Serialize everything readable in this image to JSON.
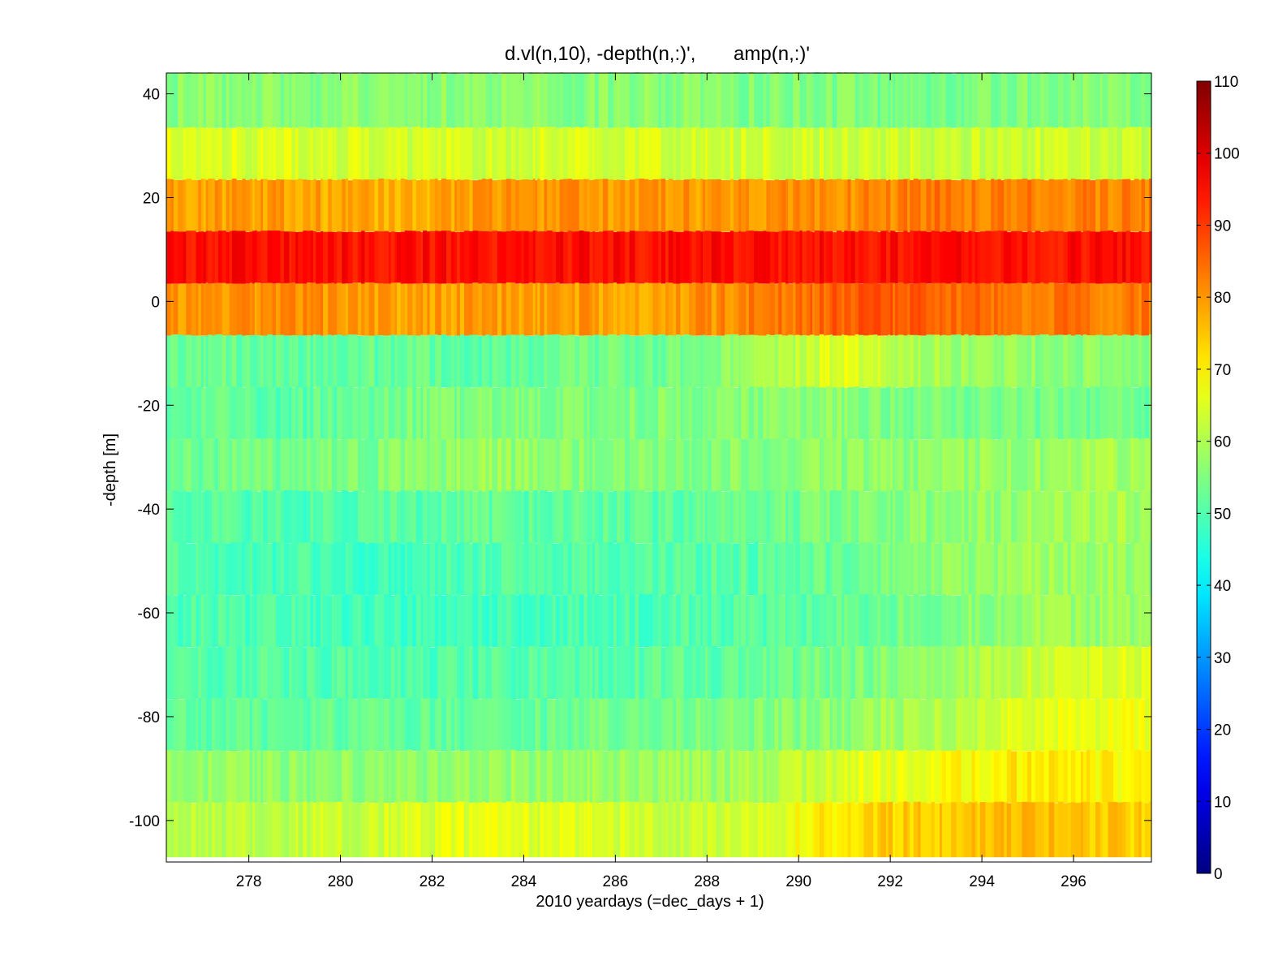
{
  "chart_data": {
    "type": "heatmap",
    "title": "d.vl(n,10), -depth(n,:)',       amp(n,:)'",
    "xlabel": "2010 yeardays (=dec_days + 1)",
    "ylabel": "-depth [m]",
    "xlim": [
      276.2,
      297.7
    ],
    "ylim": [
      -108,
      44
    ],
    "x_ticks": [
      278,
      280,
      282,
      284,
      286,
      288,
      290,
      292,
      294,
      296
    ],
    "y_ticks": [
      40,
      20,
      0,
      -20,
      -40,
      -60,
      -80,
      -100
    ],
    "colorbar": {
      "colormap": "jet",
      "range": [
        0,
        110
      ],
      "ticks": [
        0,
        10,
        20,
        30,
        40,
        50,
        60,
        70,
        80,
        90,
        100,
        110
      ]
    },
    "grid": false,
    "bins": [
      {
        "center_depth": 38,
        "top": 44,
        "bottom": 33.5
      },
      {
        "center_depth": 28,
        "top": 33.5,
        "bottom": 23.5
      },
      {
        "center_depth": 18,
        "top": 23.5,
        "bottom": 13.5
      },
      {
        "center_depth": 8,
        "top": 13.5,
        "bottom": 3.5
      },
      {
        "center_depth": -2,
        "top": 3.5,
        "bottom": -6.5
      },
      {
        "center_depth": -12,
        "top": -6.5,
        "bottom": -16.5
      },
      {
        "center_depth": -22,
        "top": -16.5,
        "bottom": -26.5
      },
      {
        "center_depth": -32,
        "top": -26.5,
        "bottom": -36.5
      },
      {
        "center_depth": -42,
        "top": -36.5,
        "bottom": -46.5
      },
      {
        "center_depth": -52,
        "top": -46.5,
        "bottom": -56.5
      },
      {
        "center_depth": -62,
        "top": -56.5,
        "bottom": -66.5
      },
      {
        "center_depth": -72,
        "top": -66.5,
        "bottom": -76.5
      },
      {
        "center_depth": -82,
        "top": -76.5,
        "bottom": -86.5
      },
      {
        "center_depth": -92,
        "top": -86.5,
        "bottom": -96.5
      },
      {
        "center_depth": -102,
        "top": -96.5,
        "bottom": -107
      }
    ],
    "amp_profile_days": [
      277,
      279,
      281,
      283,
      285,
      287,
      289,
      291,
      293,
      295,
      297
    ],
    "amp_profile": [
      [
        56,
        56,
        56,
        56,
        56,
        56,
        55,
        55,
        54,
        55,
        56
      ],
      [
        65,
        65,
        64,
        64,
        64,
        64,
        64,
        64,
        63,
        63,
        63
      ],
      [
        79,
        79,
        77,
        79,
        80,
        80,
        80,
        81,
        83,
        83,
        82
      ],
      [
        95,
        95,
        95,
        95,
        95,
        95,
        95,
        95,
        95,
        95,
        95
      ],
      [
        80,
        81,
        79,
        79,
        79,
        79,
        82,
        86,
        86,
        84,
        83
      ],
      [
        53,
        52,
        52,
        52,
        53,
        54,
        57,
        66,
        59,
        57,
        56
      ],
      [
        52,
        51,
        54,
        55,
        55,
        55,
        56,
        56,
        54,
        54,
        53
      ],
      [
        53,
        54,
        55,
        58,
        56,
        55,
        56,
        56,
        57,
        58,
        59
      ],
      [
        51,
        50,
        51,
        52,
        51,
        51,
        53,
        54,
        56,
        58,
        59
      ],
      [
        50,
        49,
        48,
        50,
        50,
        51,
        51,
        53,
        56,
        58,
        58
      ],
      [
        50,
        49,
        48,
        48,
        49,
        50,
        50,
        52,
        55,
        58,
        58
      ],
      [
        51,
        51,
        50,
        50,
        51,
        51,
        52,
        54,
        58,
        63,
        65
      ],
      [
        52,
        52,
        52,
        52,
        53,
        54,
        55,
        57,
        60,
        66,
        67
      ],
      [
        57,
        57,
        57,
        57,
        58,
        58,
        59,
        65,
        68,
        71,
        69
      ],
      [
        61,
        62,
        64,
        66,
        65,
        64,
        64,
        72,
        75,
        76,
        74
      ]
    ]
  }
}
